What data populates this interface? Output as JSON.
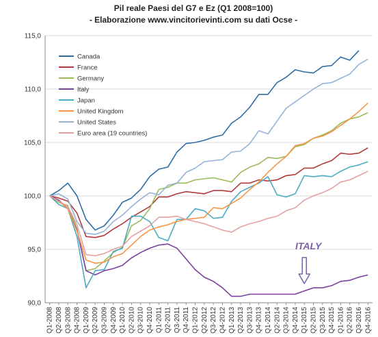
{
  "chart_data": {
    "type": "line",
    "title": "Pil reale Paesi del G7 e Ez (Q1 2008=100)",
    "subtitle": "- Elaborazione www.vincitorievinti.com su dati Ocse -",
    "xlabel": "",
    "ylabel": "",
    "ylim": [
      90,
      115
    ],
    "yticks": [
      "90,0",
      "95,0",
      "100,0",
      "105,0",
      "110,0",
      "115,0"
    ],
    "ytick_values": [
      90,
      95,
      100,
      105,
      110,
      115
    ],
    "grid": "horizontal",
    "legend_position": "top-left",
    "categories": [
      "Q1-2008",
      "Q2-2008",
      "Q3-2008",
      "Q4-2008",
      "Q1-2009",
      "Q2-2009",
      "Q3-2009",
      "Q4-2009",
      "Q1-2010",
      "Q2-2010",
      "Q3-2010",
      "Q4-2010",
      "Q1-2011",
      "Q2-2011",
      "Q3-2011",
      "Q4-2011",
      "Q1-2012",
      "Q2-2012",
      "Q3-2012",
      "Q4-2012",
      "Q1-2013",
      "Q2-2013",
      "Q3-2013",
      "Q4-2013",
      "Q1-2014",
      "Q2-2014",
      "Q3-2014",
      "Q4-2014",
      "Q1-2015",
      "Q2-2015",
      "Q3-2015",
      "Q4-2015",
      "Q1-2016",
      "Q2-2016",
      "Q3-2016",
      "Q4-2016"
    ],
    "series": [
      {
        "name": "Canada",
        "color": "#2e6da4",
        "values": [
          100.0,
          100.5,
          101.2,
          100.0,
          97.8,
          96.8,
          97.2,
          98.2,
          99.4,
          99.8,
          100.6,
          101.8,
          102.5,
          102.7,
          104.1,
          104.9,
          105.0,
          105.2,
          105.5,
          105.7,
          106.8,
          107.4,
          108.3,
          109.5,
          109.5,
          110.6,
          111.1,
          111.8,
          111.6,
          111.5,
          112.1,
          112.2,
          113.0,
          112.7,
          113.6,
          null
        ]
      },
      {
        "name": "France",
        "color": "#b03a3a",
        "values": [
          100.0,
          99.8,
          99.5,
          98.4,
          96.2,
          96.1,
          96.3,
          96.9,
          97.4,
          98.0,
          98.5,
          99.0,
          99.9,
          99.9,
          100.2,
          100.4,
          100.3,
          100.2,
          100.5,
          100.5,
          100.4,
          101.2,
          101.2,
          101.5,
          101.4,
          101.5,
          101.9,
          102.0,
          102.6,
          102.6,
          103.0,
          103.3,
          104.0,
          103.9,
          104.0,
          104.5
        ]
      },
      {
        "name": "Germany",
        "color": "#9bbb59",
        "values": [
          100.0,
          99.4,
          99.1,
          96.9,
          93.0,
          93.2,
          93.9,
          94.7,
          95.2,
          97.2,
          97.7,
          98.8,
          100.6,
          100.8,
          101.2,
          101.2,
          101.5,
          101.6,
          101.7,
          101.5,
          101.3,
          102.2,
          102.7,
          103.0,
          103.6,
          103.5,
          103.7,
          104.6,
          104.8,
          105.4,
          105.7,
          106.1,
          106.8,
          107.2,
          107.4,
          107.8
        ]
      },
      {
        "name": "Italy",
        "color": "#7b3f9e",
        "values": [
          100.0,
          99.6,
          98.8,
          96.8,
          93.0,
          92.6,
          93.0,
          93.2,
          93.5,
          94.2,
          94.7,
          95.1,
          95.4,
          95.5,
          95.1,
          94.1,
          93.1,
          92.4,
          92.0,
          91.4,
          90.6,
          90.6,
          90.8,
          90.8,
          90.8,
          90.8,
          90.8,
          90.8,
          91.1,
          91.4,
          91.4,
          91.6,
          92.0,
          92.1,
          92.4,
          92.6
        ]
      },
      {
        "name": "Japan",
        "color": "#4bacc6",
        "values": [
          100.0,
          99.2,
          98.8,
          96.2,
          91.4,
          93.0,
          93.1,
          94.8,
          95.1,
          98.1,
          98.1,
          97.6,
          96.1,
          95.8,
          97.8,
          97.8,
          98.8,
          98.6,
          97.9,
          98.0,
          99.5,
          100.4,
          100.8,
          101.2,
          101.8,
          100.1,
          99.9,
          100.2,
          101.9,
          101.8,
          101.9,
          101.8,
          102.3,
          102.7,
          102.9,
          103.2
        ]
      },
      {
        "name": "United Kingdom",
        "color": "#f79646",
        "values": [
          100.0,
          99.5,
          98.8,
          96.7,
          94.0,
          93.7,
          93.8,
          94.3,
          94.6,
          95.4,
          96.2,
          96.8,
          97.1,
          97.3,
          97.6,
          97.8,
          97.9,
          98.0,
          98.9,
          98.8,
          99.3,
          99.8,
          100.6,
          101.3,
          102.2,
          103.0,
          103.7,
          104.7,
          104.9,
          105.4,
          105.6,
          106.0,
          106.6,
          107.2,
          107.9,
          108.7
        ]
      },
      {
        "name": "United States",
        "color": "#95b3d7",
        "values": [
          100.0,
          100.2,
          99.7,
          97.6,
          96.5,
          96.4,
          96.7,
          97.6,
          98.2,
          99.0,
          99.7,
          100.3,
          100.1,
          101.0,
          101.2,
          102.2,
          102.6,
          103.2,
          103.3,
          103.4,
          104.1,
          104.2,
          104.9,
          106.1,
          105.8,
          107.0,
          108.2,
          108.8,
          109.4,
          110.0,
          110.5,
          110.6,
          111.0,
          111.4,
          112.3,
          112.8
        ]
      },
      {
        "name": "Euro area (19 countries)",
        "color": "#e6a0a0",
        "values": [
          100.0,
          99.5,
          99.0,
          97.3,
          94.5,
          94.4,
          94.6,
          95.0,
          95.3,
          96.2,
          96.7,
          97.2,
          98.0,
          98.0,
          98.1,
          97.8,
          97.6,
          97.4,
          97.1,
          96.8,
          96.6,
          97.1,
          97.4,
          97.6,
          97.9,
          98.1,
          98.6,
          98.9,
          99.6,
          100.0,
          100.3,
          100.7,
          101.3,
          101.5,
          101.9,
          102.3
        ]
      }
    ],
    "annotations": [
      {
        "text": "ITALY",
        "color": "#7b5fa6",
        "target_category": "Q1-2015",
        "arrow": "down"
      }
    ]
  }
}
